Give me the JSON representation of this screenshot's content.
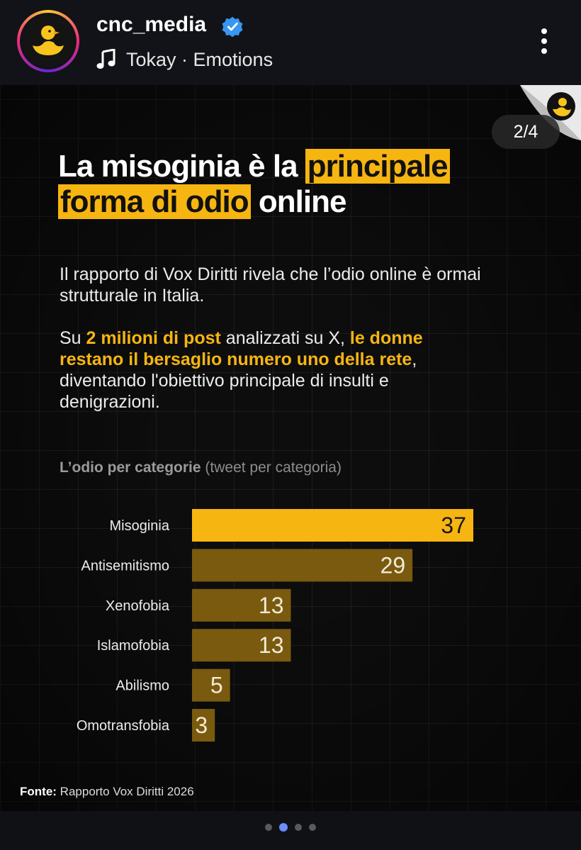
{
  "header": {
    "username": "cnc_media",
    "music_label": "Tokay · Emotions"
  },
  "post": {
    "page_counter": "2/4",
    "title_parts": {
      "a": "La misoginia è la",
      "b": "principale",
      "c": "forma di odio",
      "d": "online"
    },
    "paragraph1": "Il rapporto di Vox Diritti rivela che l’odio online è ormai strutturale in Italia.",
    "paragraph2": {
      "a": "Su",
      "b": "2 milioni di post",
      "c": "analizzati su X,",
      "d": "le donne restano il bersaglio numero uno della rete",
      "e": ", diventando l'obiettivo principale di insulti e denigrazioni."
    },
    "chart_heading": {
      "bold": "L’odio per categorie",
      "rest": "(tweet per categoria)"
    },
    "source": {
      "label": "Fonte:",
      "text": "Rapporto Vox Diritti 2026"
    }
  },
  "chart_data": {
    "type": "bar",
    "orientation": "horizontal",
    "categories": [
      "Misoginia",
      "Antisemitismo",
      "Xenofobia",
      "Islamofobia",
      "Abilismo",
      "Omotransfobia"
    ],
    "values": [
      37,
      29,
      13,
      13,
      5,
      3
    ],
    "highlight_index": 0,
    "colors": {
      "highlight": "#f6b511",
      "default": "#7a5a0e"
    },
    "xlim": [
      0,
      37
    ]
  },
  "carousel": {
    "count": 4,
    "active": 1
  },
  "colors": {
    "accent": "#f6b511",
    "verified": "#3897f0",
    "dot_active": "#6e8cff"
  }
}
